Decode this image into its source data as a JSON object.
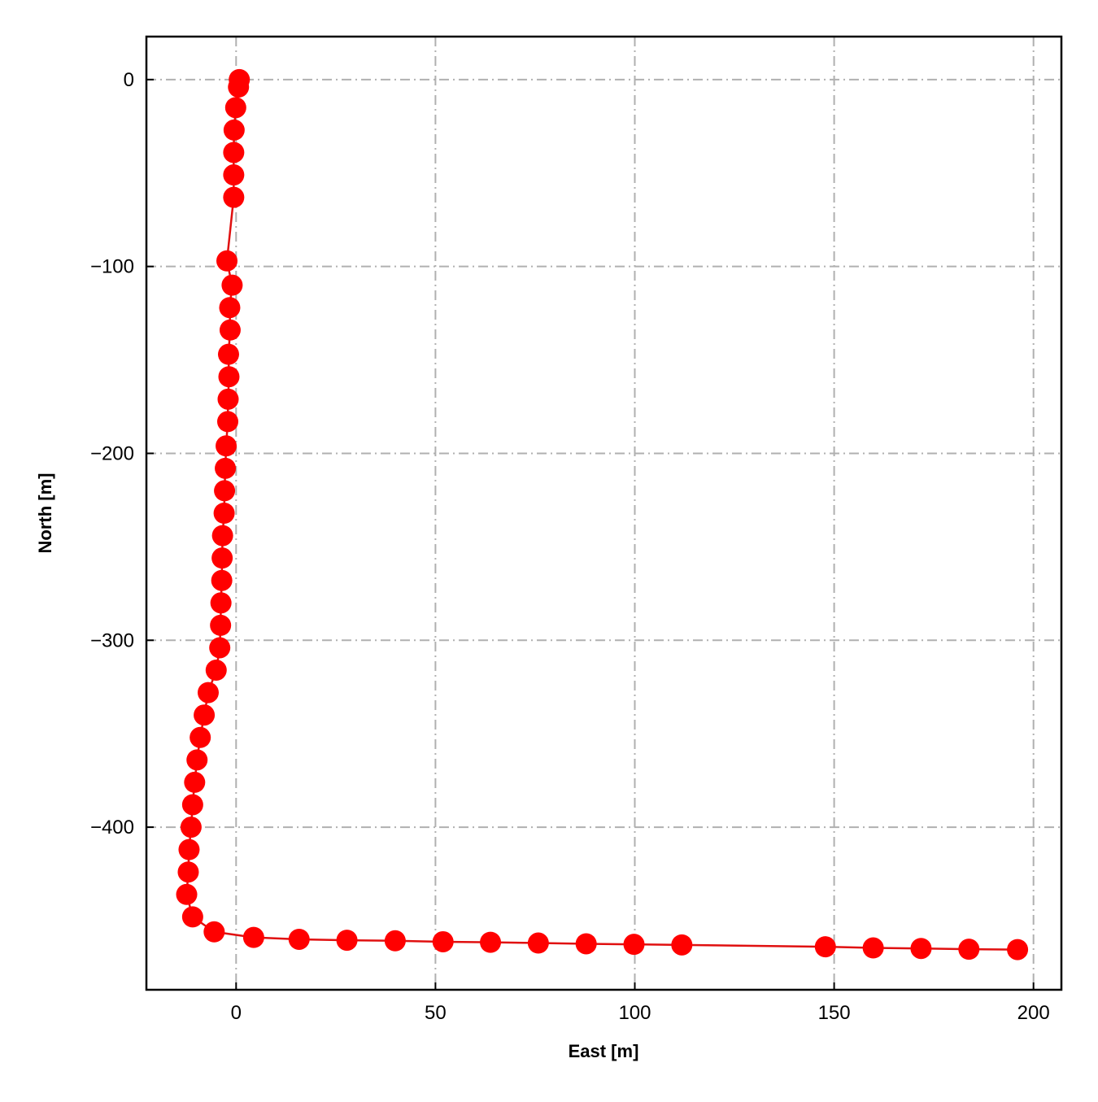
{
  "chart_data": {
    "type": "line",
    "title": "",
    "xlabel": "East [m]",
    "ylabel": "North [m]",
    "xlim": [
      -22.5,
      207
    ],
    "ylim": [
      -487,
      23
    ],
    "xticks": [
      0,
      50,
      100,
      150,
      200
    ],
    "yticks": [
      0,
      -100,
      -200,
      -300,
      -400
    ],
    "xtick_labels": [
      "0",
      "50",
      "100",
      "150",
      "200"
    ],
    "ytick_labels": [
      "0",
      "−100",
      "−200",
      "−300",
      "−400"
    ],
    "grid": true,
    "legend": "none",
    "series": [
      {
        "color": "#ff0000",
        "line_color": "#e01010",
        "marker": "circle",
        "points": [
          [
            0.8,
            0.0
          ],
          [
            0.6,
            -4.0
          ],
          [
            -0.1,
            -15.0
          ],
          [
            -0.5,
            -27.0
          ],
          [
            -0.6,
            -39.0
          ],
          [
            -0.6,
            -51.0
          ],
          [
            -0.6,
            -63.0
          ],
          [
            -2.3,
            -97.0
          ],
          [
            -1.0,
            -110.0
          ],
          [
            -1.6,
            -122.0
          ],
          [
            -1.5,
            -134.0
          ],
          [
            -1.9,
            -147.0
          ],
          [
            -1.8,
            -159.0
          ],
          [
            -2.0,
            -171.0
          ],
          [
            -2.1,
            -183.0
          ],
          [
            -2.5,
            -196.0
          ],
          [
            -2.7,
            -208.0
          ],
          [
            -2.9,
            -220.0
          ],
          [
            -3.0,
            -232.0
          ],
          [
            -3.4,
            -244.0
          ],
          [
            -3.5,
            -256.0
          ],
          [
            -3.6,
            -268.0
          ],
          [
            -3.8,
            -280.0
          ],
          [
            -3.9,
            -292.0
          ],
          [
            -4.1,
            -304.0
          ],
          [
            -5.0,
            -316.0
          ],
          [
            -7.0,
            -328.0
          ],
          [
            -8.0,
            -340.0
          ],
          [
            -9.0,
            -352.0
          ],
          [
            -9.8,
            -364.0
          ],
          [
            -10.4,
            -376.0
          ],
          [
            -10.9,
            -388.0
          ],
          [
            -11.3,
            -400.0
          ],
          [
            -11.8,
            -412.0
          ],
          [
            -12.0,
            -424.0
          ],
          [
            -12.4,
            -436.0
          ],
          [
            -10.9,
            -448.0
          ],
          [
            -5.5,
            -456.0
          ],
          [
            4.4,
            -459.0
          ],
          [
            15.8,
            -460.0
          ],
          [
            27.8,
            -460.5
          ],
          [
            39.9,
            -460.8
          ],
          [
            51.9,
            -461.3
          ],
          [
            63.8,
            -461.6
          ],
          [
            75.8,
            -462.0
          ],
          [
            87.8,
            -462.4
          ],
          [
            99.8,
            -462.7
          ],
          [
            111.8,
            -463.0
          ],
          [
            147.8,
            -464.0
          ],
          [
            159.8,
            -464.6
          ],
          [
            171.8,
            -464.9
          ],
          [
            183.8,
            -465.3
          ],
          [
            196.0,
            -465.5
          ]
        ]
      }
    ]
  }
}
